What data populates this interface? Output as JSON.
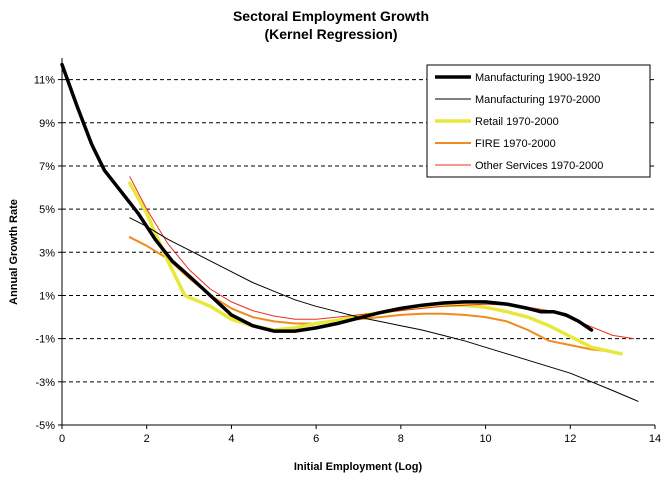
{
  "chart_data": {
    "type": "line",
    "title": "Sectoral Employment Growth",
    "subtitle": "(Kernel Regression)",
    "xlabel": "Initial Employment (Log)",
    "ylabel": "Annual Growth Rate",
    "xlim": [
      0,
      14
    ],
    "ylim": [
      -5,
      12
    ],
    "xticks": [
      0,
      2,
      4,
      6,
      8,
      10,
      12,
      14
    ],
    "xtick_labels": [
      "0",
      "2",
      "4",
      "6",
      "8",
      "10",
      "12",
      "14"
    ],
    "yticks": [
      -5,
      -3,
      -1,
      1,
      3,
      5,
      7,
      9,
      11
    ],
    "ytick_labels": [
      "-5%",
      "-3%",
      "-1%",
      "1%",
      "3%",
      "5%",
      "7%",
      "9%",
      "11%"
    ],
    "grid": "horizontal dashed",
    "legend_position": "top-right",
    "series": [
      {
        "name": "Manufacturing 1900-1920",
        "color": "#000000",
        "style": "thick",
        "x": [
          0,
          0.35,
          0.7,
          1.0,
          1.4,
          1.8,
          2.2,
          2.6,
          3.0,
          3.5,
          4.0,
          4.5,
          5.0,
          5.5,
          6.0,
          6.5,
          7.0,
          7.5,
          8.0,
          8.5,
          9.0,
          9.5,
          10.0,
          10.5,
          11.0,
          11.3,
          11.6,
          11.9,
          12.2,
          12.5
        ],
        "y": [
          11.7,
          9.8,
          8.0,
          6.8,
          5.8,
          4.8,
          3.6,
          2.6,
          1.9,
          1.0,
          0.1,
          -0.4,
          -0.65,
          -0.65,
          -0.5,
          -0.3,
          -0.05,
          0.2,
          0.4,
          0.55,
          0.65,
          0.7,
          0.7,
          0.6,
          0.4,
          0.25,
          0.25,
          0.1,
          -0.2,
          -0.6
        ]
      },
      {
        "name": "Manufacturing 1970-2000",
        "color": "#000000",
        "style": "thin",
        "x": [
          1.6,
          2.0,
          2.5,
          3.0,
          3.5,
          4.0,
          4.5,
          5.0,
          5.5,
          6.0,
          6.5,
          7.0,
          7.5,
          8.0,
          8.5,
          9.0,
          9.5,
          10.0,
          10.5,
          11.0,
          11.5,
          12.0,
          12.5,
          13.0,
          13.6
        ],
        "y": [
          4.6,
          4.2,
          3.6,
          3.1,
          2.6,
          2.1,
          1.6,
          1.2,
          0.8,
          0.5,
          0.25,
          0.0,
          -0.2,
          -0.4,
          -0.6,
          -0.85,
          -1.1,
          -1.4,
          -1.7,
          -2.0,
          -2.3,
          -2.6,
          -3.0,
          -3.4,
          -3.9
        ]
      },
      {
        "name": "Retail 1970-2000",
        "color": "#e8e83a",
        "style": "thick",
        "x": [
          1.6,
          2.0,
          2.4,
          2.9,
          3.5,
          4.0,
          4.5,
          5.0,
          5.5,
          6.0,
          6.5,
          7.0,
          7.5,
          8.0,
          8.5,
          9.0,
          9.5,
          10.0,
          10.5,
          11.0,
          11.5,
          12.0,
          12.5,
          13.2
        ],
        "y": [
          6.2,
          4.8,
          3.0,
          1.0,
          0.5,
          -0.1,
          -0.4,
          -0.6,
          -0.5,
          -0.3,
          -0.15,
          0.05,
          0.2,
          0.35,
          0.5,
          0.55,
          0.55,
          0.45,
          0.25,
          0.0,
          -0.4,
          -0.9,
          -1.4,
          -1.7
        ]
      },
      {
        "name": "FIRE 1970-2000",
        "color": "#f08c1e",
        "style": "medium",
        "x": [
          1.6,
          2.0,
          2.5,
          3.0,
          3.5,
          4.0,
          4.5,
          5.0,
          5.5,
          6.0,
          6.5,
          7.0,
          7.5,
          8.0,
          8.5,
          9.0,
          9.5,
          10.0,
          10.5,
          11.0,
          11.5,
          12.0,
          12.5,
          13.0
        ],
        "y": [
          3.7,
          3.3,
          2.7,
          1.8,
          1.0,
          0.4,
          0.0,
          -0.2,
          -0.3,
          -0.3,
          -0.2,
          -0.1,
          0.0,
          0.1,
          0.15,
          0.15,
          0.1,
          0.0,
          -0.2,
          -0.6,
          -1.1,
          -1.3,
          -1.5,
          -1.6
        ]
      },
      {
        "name": "Other Services 1970-2000",
        "color": "#e83020",
        "style": "thin",
        "x": [
          1.6,
          2.0,
          2.5,
          3.0,
          3.5,
          4.0,
          4.5,
          5.0,
          5.5,
          6.0,
          6.5,
          7.0,
          7.5,
          8.0,
          8.5,
          9.0,
          9.5,
          10.0,
          10.5,
          11.0,
          11.5,
          12.0,
          12.5,
          13.0,
          13.5
        ],
        "y": [
          6.5,
          5.0,
          3.4,
          2.2,
          1.3,
          0.7,
          0.3,
          0.05,
          -0.1,
          -0.1,
          0.0,
          0.1,
          0.2,
          0.3,
          0.4,
          0.5,
          0.55,
          0.6,
          0.55,
          0.45,
          0.3,
          -0.05,
          -0.45,
          -0.85,
          -1.0
        ]
      }
    ]
  }
}
